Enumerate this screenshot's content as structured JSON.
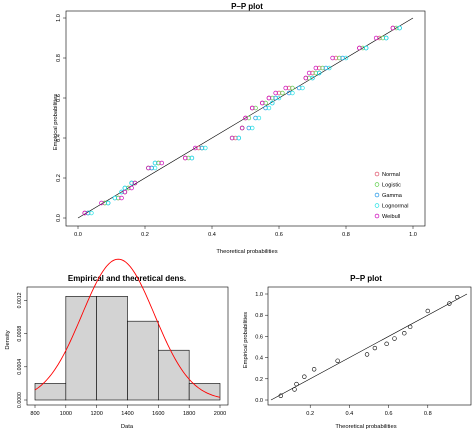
{
  "chart_data": [
    {
      "type": "scatter",
      "title": "P–P plot",
      "xlabel": "Theoretical probabilities",
      "ylabel": "Empirical probabilities",
      "xlim": [
        0,
        1
      ],
      "ylim": [
        0,
        1
      ],
      "x_ticks": [
        "0.0",
        "0.2",
        "0.4",
        "0.6",
        "0.8",
        "1.0"
      ],
      "y_ticks": [
        "0.0",
        "0.2",
        "0.4",
        "0.6",
        "0.8",
        "1.0"
      ],
      "reference_line": "y = x",
      "legend_position": "bottom-right",
      "emp": [
        0.025,
        0.075,
        0.1,
        0.13,
        0.15,
        0.175,
        0.25,
        0.275,
        0.3,
        0.35,
        0.4,
        0.45,
        0.5,
        0.55,
        0.575,
        0.6,
        0.625,
        0.65,
        0.7,
        0.725,
        0.75,
        0.8,
        0.85,
        0.9,
        0.95
      ],
      "series": [
        {
          "name": "Normal",
          "color": "#DF536B",
          "x": [
            0.02,
            0.08,
            0.12,
            0.14,
            0.15,
            0.16,
            0.22,
            0.24,
            0.32,
            0.36,
            0.47,
            0.49,
            0.5,
            0.52,
            0.55,
            0.57,
            0.6,
            0.63,
            0.68,
            0.7,
            0.72,
            0.77,
            0.84,
            0.9,
            0.94
          ]
        },
        {
          "name": "Logistic",
          "color": "#61D04F",
          "x": [
            0.03,
            0.08,
            0.12,
            0.14,
            0.15,
            0.17,
            0.21,
            0.24,
            0.33,
            0.37,
            0.46,
            0.49,
            0.51,
            0.53,
            0.56,
            0.58,
            0.61,
            0.64,
            0.69,
            0.71,
            0.73,
            0.78,
            0.85,
            0.91,
            0.95
          ]
        },
        {
          "name": "Gamma",
          "color": "#2297E6",
          "x": [
            0.03,
            0.09,
            0.11,
            0.13,
            0.14,
            0.16,
            0.22,
            0.23,
            0.34,
            0.37,
            0.48,
            0.51,
            0.53,
            0.56,
            0.58,
            0.59,
            0.63,
            0.66,
            0.7,
            0.72,
            0.74,
            0.79,
            0.86,
            0.92,
            0.96
          ]
        },
        {
          "name": "Lognormal",
          "color": "#28E2E5",
          "x": [
            0.04,
            0.09,
            0.11,
            0.13,
            0.14,
            0.16,
            0.23,
            0.23,
            0.34,
            0.38,
            0.48,
            0.52,
            0.54,
            0.57,
            0.58,
            0.6,
            0.64,
            0.67,
            0.7,
            0.72,
            0.75,
            0.8,
            0.86,
            0.92,
            0.96
          ]
        },
        {
          "name": "Weibull",
          "color": "#CD0BBC",
          "x": [
            0.02,
            0.07,
            0.13,
            0.14,
            0.16,
            0.17,
            0.21,
            0.25,
            0.32,
            0.35,
            0.46,
            0.49,
            0.5,
            0.52,
            0.55,
            0.57,
            0.59,
            0.62,
            0.68,
            0.69,
            0.71,
            0.76,
            0.84,
            0.89,
            0.94
          ]
        }
      ]
    },
    {
      "type": "histogram",
      "title": "Empirical and theoretical dens.",
      "xlabel": "Data",
      "ylabel": "Density",
      "xlim": [
        800,
        2000
      ],
      "ylim": [
        0,
        0.00135
      ],
      "x_ticks": [
        "800",
        "1000",
        "1200",
        "1400",
        "1600",
        "1800",
        "2000"
      ],
      "y_ticks": [
        "0.0000",
        "0.0004",
        "0.0008",
        "0.0012"
      ],
      "y_tick_values": [
        0,
        0.0004,
        0.0008,
        0.0012
      ],
      "bins": [
        {
          "from": 800,
          "to": 1000,
          "density": 0.0002
        },
        {
          "from": 1000,
          "to": 1200,
          "density": 0.00125
        },
        {
          "from": 1200,
          "to": 1400,
          "density": 0.00125
        },
        {
          "from": 1400,
          "to": 1600,
          "density": 0.00095
        },
        {
          "from": 1600,
          "to": 1800,
          "density": 0.0006
        },
        {
          "from": 1800,
          "to": 2000,
          "density": 0.0002
        }
      ],
      "bar_fill": "#D3D3D3",
      "curve_color": "#FF0000",
      "curve": {
        "distribution": "normal",
        "mean": 1340,
        "sd": 235
      }
    },
    {
      "type": "scatter",
      "title": "P–P plot",
      "xlabel": "Theoretical probabilities",
      "ylabel": "Empirical probabilities",
      "xlim": [
        0,
        1
      ],
      "ylim": [
        0,
        1
      ],
      "x_ticks": [
        "0.2",
        "0.4",
        "0.6",
        "0.8"
      ],
      "y_ticks": [
        "0.0",
        "0.2",
        "0.4",
        "0.6",
        "0.8",
        "1.0"
      ],
      "reference_line": "y = x",
      "points": [
        {
          "x": 0.05,
          "y": 0.04
        },
        {
          "x": 0.12,
          "y": 0.1
        },
        {
          "x": 0.13,
          "y": 0.15
        },
        {
          "x": 0.17,
          "y": 0.22
        },
        {
          "x": 0.22,
          "y": 0.29
        },
        {
          "x": 0.34,
          "y": 0.37
        },
        {
          "x": 0.49,
          "y": 0.43
        },
        {
          "x": 0.53,
          "y": 0.49
        },
        {
          "x": 0.59,
          "y": 0.53
        },
        {
          "x": 0.63,
          "y": 0.58
        },
        {
          "x": 0.68,
          "y": 0.63
        },
        {
          "x": 0.71,
          "y": 0.69
        },
        {
          "x": 0.8,
          "y": 0.84
        },
        {
          "x": 0.91,
          "y": 0.91
        },
        {
          "x": 0.95,
          "y": 0.97
        }
      ]
    }
  ]
}
